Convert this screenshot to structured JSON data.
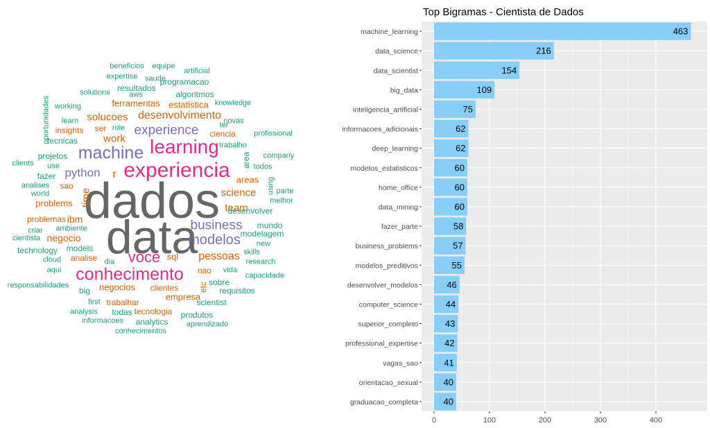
{
  "wordcloud": {
    "colors": {
      "gray": "#666666",
      "pink": "#e7298a",
      "purple": "#7570b3",
      "orange": "#d95f02",
      "green": "#1b9e77"
    },
    "words": [
      {
        "t": "dados",
        "c": "gray"
      },
      {
        "t": "data",
        "c": "gray"
      },
      {
        "t": "experiencia",
        "c": "pink"
      },
      {
        "t": "learning",
        "c": "pink"
      },
      {
        "t": "conhecimento",
        "c": "pink"
      },
      {
        "t": "voce",
        "c": "pink"
      },
      {
        "t": "machine",
        "c": "purple"
      },
      {
        "t": "experience",
        "c": "purple"
      },
      {
        "t": "business",
        "c": "purple"
      },
      {
        "t": "modelos",
        "c": "purple"
      },
      {
        "t": "python",
        "c": "purple"
      },
      {
        "t": "desenvolvimento",
        "c": "orange"
      },
      {
        "t": "solucoes",
        "c": "orange"
      },
      {
        "t": "work",
        "c": "orange"
      },
      {
        "t": "science",
        "c": "orange"
      },
      {
        "t": "team",
        "c": "orange"
      },
      {
        "t": "pessoas",
        "c": "orange"
      },
      {
        "t": "negocio",
        "c": "orange"
      },
      {
        "t": "ibm",
        "c": "orange"
      },
      {
        "t": "time",
        "c": "orange"
      },
      {
        "t": "r",
        "c": "orange"
      },
      {
        "t": "ferramentas",
        "c": "orange"
      },
      {
        "t": "estatistica",
        "c": "orange"
      },
      {
        "t": "insights",
        "c": "orange"
      },
      {
        "t": "ser",
        "c": "orange"
      },
      {
        "t": "ciencia",
        "c": "orange"
      },
      {
        "t": "areas",
        "c": "orange"
      },
      {
        "t": "problems",
        "c": "orange"
      },
      {
        "t": "problemas",
        "c": "orange"
      },
      {
        "t": "sql",
        "c": "orange"
      },
      {
        "t": "nao",
        "c": "orange"
      },
      {
        "t": "negocios",
        "c": "orange"
      },
      {
        "t": "clientes",
        "c": "orange"
      },
      {
        "t": "empresa",
        "c": "orange"
      },
      {
        "t": "trabalhar",
        "c": "orange"
      },
      {
        "t": "tecnologia",
        "c": "orange"
      },
      {
        "t": "etc",
        "c": "orange"
      },
      {
        "t": "analise",
        "c": "orange"
      },
      {
        "t": "sao",
        "c": "orange"
      },
      {
        "t": "beneficios",
        "c": "green"
      },
      {
        "t": "equipe",
        "c": "green"
      },
      {
        "t": "artificial",
        "c": "green"
      },
      {
        "t": "expertise",
        "c": "green"
      },
      {
        "t": "saude",
        "c": "green"
      },
      {
        "t": "programacao",
        "c": "green"
      },
      {
        "t": "resultados",
        "c": "green"
      },
      {
        "t": "solutions",
        "c": "green"
      },
      {
        "t": "aws",
        "c": "green"
      },
      {
        "t": "algoritmos",
        "c": "green"
      },
      {
        "t": "oportunidades",
        "c": "green"
      },
      {
        "t": "knowledge",
        "c": "green"
      },
      {
        "t": "working",
        "c": "green"
      },
      {
        "t": "novas",
        "c": "green"
      },
      {
        "t": "learn",
        "c": "green"
      },
      {
        "t": "role",
        "c": "green"
      },
      {
        "t": "ter",
        "c": "green"
      },
      {
        "t": "profissional",
        "c": "green"
      },
      {
        "t": "tecnicas",
        "c": "green"
      },
      {
        "t": "trabalho",
        "c": "green"
      },
      {
        "t": "projetos",
        "c": "green"
      },
      {
        "t": "area",
        "c": "green"
      },
      {
        "t": "company",
        "c": "green"
      },
      {
        "t": "clients",
        "c": "green"
      },
      {
        "t": "use",
        "c": "green"
      },
      {
        "t": "todos",
        "c": "green"
      },
      {
        "t": "fazer",
        "c": "green"
      },
      {
        "t": "using",
        "c": "green"
      },
      {
        "t": "parte",
        "c": "green"
      },
      {
        "t": "analises",
        "c": "green"
      },
      {
        "t": "world",
        "c": "green"
      },
      {
        "t": "melhor",
        "c": "green"
      },
      {
        "t": "desenvolver",
        "c": "green"
      },
      {
        "t": "mundo",
        "c": "green"
      },
      {
        "t": "criar",
        "c": "green"
      },
      {
        "t": "ambiente",
        "c": "green"
      },
      {
        "t": "modelagem",
        "c": "green"
      },
      {
        "t": "cientista",
        "c": "green"
      },
      {
        "t": "new",
        "c": "green"
      },
      {
        "t": "technology",
        "c": "green"
      },
      {
        "t": "models",
        "c": "green"
      },
      {
        "t": "skills",
        "c": "green"
      },
      {
        "t": "cloud",
        "c": "green"
      },
      {
        "t": "dia",
        "c": "green"
      },
      {
        "t": "research",
        "c": "green"
      },
      {
        "t": "aqui",
        "c": "green"
      },
      {
        "t": "vida",
        "c": "green"
      },
      {
        "t": "capacidade",
        "c": "green"
      },
      {
        "t": "responsabilidades",
        "c": "green"
      },
      {
        "t": "big",
        "c": "green"
      },
      {
        "t": "sobre",
        "c": "green"
      },
      {
        "t": "requisitos",
        "c": "green"
      },
      {
        "t": "first",
        "c": "green"
      },
      {
        "t": "scientist",
        "c": "green"
      },
      {
        "t": "analysis",
        "c": "green"
      },
      {
        "t": "todas",
        "c": "green"
      },
      {
        "t": "produtos",
        "c": "green"
      },
      {
        "t": "informacoes",
        "c": "green"
      },
      {
        "t": "analytics",
        "c": "green"
      },
      {
        "t": "aprendizado",
        "c": "green"
      },
      {
        "t": "conhecimentos",
        "c": "green"
      }
    ]
  },
  "chart_data": {
    "type": "bar",
    "orientation": "horizontal",
    "title": "Top Bigramas - Cientista de Dados",
    "bar_color": "#87cefa",
    "panel_background": "#ebebeb",
    "xlim": [
      0,
      480
    ],
    "xticks": [
      0,
      100,
      200,
      300,
      400
    ],
    "categories": [
      "machine_learning",
      "data_science",
      "data_scientist",
      "big_data",
      "inteligencia_artificial",
      "informacoes_adicionais",
      "deep_learning",
      "modelos_estatisticos",
      "home_office",
      "data_mining",
      "fazer_parte",
      "business_problems",
      "modelos_preditivos",
      "desenvolver_modelos",
      "computer_science",
      "superior_completo",
      "professional_expertise",
      "vagas_sao",
      "orientacao_sexual",
      "graduacao_completa"
    ],
    "values": [
      463,
      216,
      154,
      109,
      75,
      62,
      62,
      60,
      60,
      60,
      58,
      57,
      55,
      46,
      44,
      43,
      42,
      41,
      40,
      40
    ]
  }
}
